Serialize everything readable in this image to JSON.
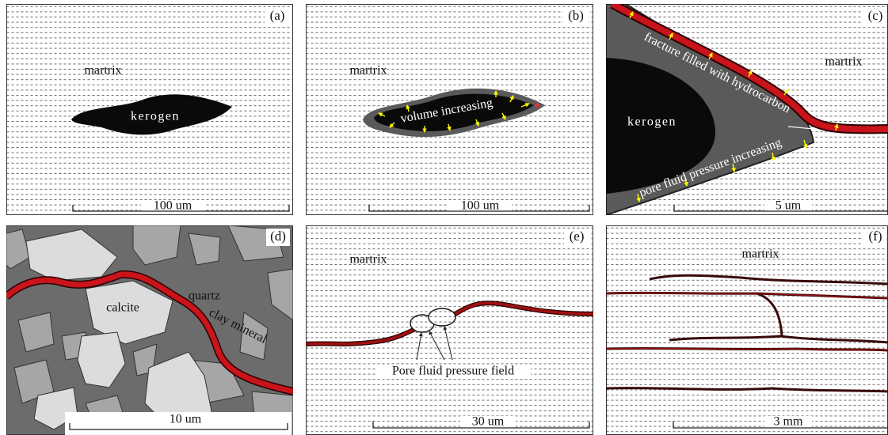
{
  "panels": [
    {
      "label": "(a)",
      "matrix": "martrix",
      "kerogen": "kerogen",
      "scale": "100 um"
    },
    {
      "label": "(b)",
      "matrix": "martrix",
      "note": "volume increasing",
      "scale": "100 um"
    },
    {
      "label": "(c)",
      "fracture": "fracture filled with hydrocarbon",
      "matrix": "martrix",
      "kerogen": "kerogen",
      "pressure": "pore fluid pressure increasing",
      "scale": "5 um"
    },
    {
      "label": "(d)",
      "calcite": "calcite",
      "quartz": "quartz",
      "clay": "clay mineral",
      "scale": "10 um"
    },
    {
      "label": "(e)",
      "matrix": "martrix",
      "field": "Pore fluid pressure field",
      "scale": "30 um"
    },
    {
      "label": "(f)",
      "matrix": "martrix",
      "scale": "3 mm"
    }
  ]
}
